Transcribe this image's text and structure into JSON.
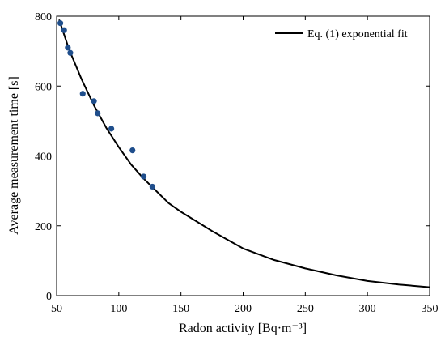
{
  "chart_data": {
    "type": "scatter",
    "xlabel": "Radon activity [Bq·m⁻³]",
    "ylabel": "Average measurement time [s]",
    "xlim": [
      50,
      350
    ],
    "ylim": [
      0,
      800
    ],
    "x_ticks": [
      50,
      100,
      150,
      200,
      250,
      300,
      350
    ],
    "y_ticks": [
      0,
      200,
      400,
      600,
      800
    ],
    "grid": false,
    "legend_position": "top-right",
    "colors": {
      "points": "#1f4e8c",
      "fit_line": "#000000"
    },
    "series": [
      {
        "kind": "scatter",
        "points": [
          {
            "x": 53,
            "y": 780
          },
          {
            "x": 56,
            "y": 760
          },
          {
            "x": 59,
            "y": 710
          },
          {
            "x": 61,
            "y": 695
          },
          {
            "x": 71,
            "y": 578
          },
          {
            "x": 80,
            "y": 557
          },
          {
            "x": 83,
            "y": 522
          },
          {
            "x": 94,
            "y": 478
          },
          {
            "x": 111,
            "y": 416
          },
          {
            "x": 120,
            "y": 341
          },
          {
            "x": 127,
            "y": 312
          }
        ]
      },
      {
        "kind": "line",
        "name": "Eq. (1) exponential fit",
        "points": [
          {
            "x": 52,
            "y": 790
          },
          {
            "x": 60,
            "y": 705
          },
          {
            "x": 70,
            "y": 620
          },
          {
            "x": 80,
            "y": 545
          },
          {
            "x": 90,
            "y": 480
          },
          {
            "x": 100,
            "y": 425
          },
          {
            "x": 110,
            "y": 375
          },
          {
            "x": 120,
            "y": 335
          },
          {
            "x": 130,
            "y": 300
          },
          {
            "x": 140,
            "y": 265
          },
          {
            "x": 150,
            "y": 240
          },
          {
            "x": 175,
            "y": 185
          },
          {
            "x": 200,
            "y": 135
          },
          {
            "x": 225,
            "y": 102
          },
          {
            "x": 250,
            "y": 78
          },
          {
            "x": 275,
            "y": 58
          },
          {
            "x": 300,
            "y": 42
          },
          {
            "x": 325,
            "y": 32
          },
          {
            "x": 350,
            "y": 24
          }
        ]
      }
    ]
  }
}
